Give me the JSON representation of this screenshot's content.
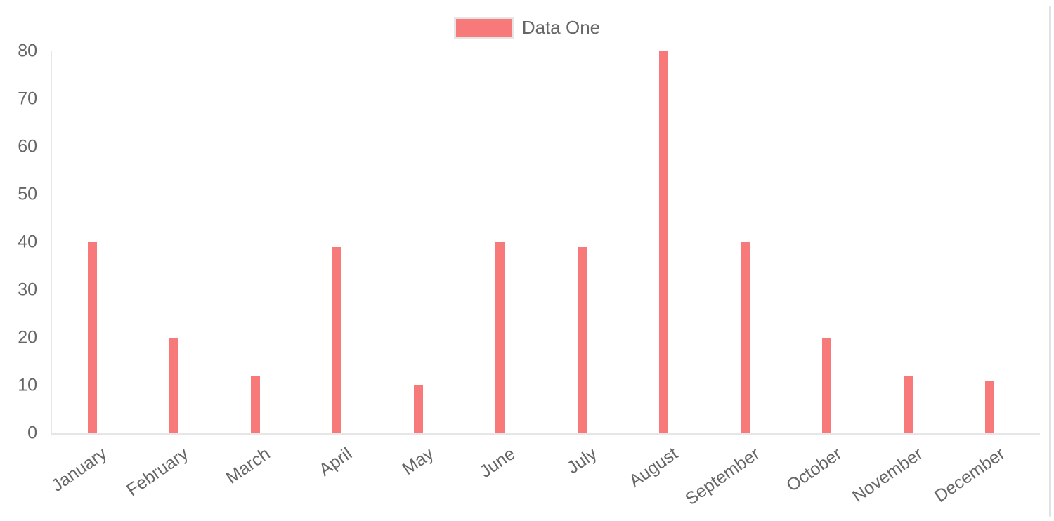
{
  "legend": {
    "label": "Data One",
    "swatch_color": "#f87979"
  },
  "chart_data": {
    "type": "bar",
    "title": "",
    "xlabel": "",
    "ylabel": "",
    "categories": [
      "January",
      "February",
      "March",
      "April",
      "May",
      "June",
      "July",
      "August",
      "September",
      "October",
      "November",
      "December"
    ],
    "series": [
      {
        "name": "Data One",
        "color": "#f87979",
        "values": [
          40,
          20,
          12,
          39,
          10,
          40,
          39,
          80,
          40,
          20,
          12,
          11
        ]
      }
    ],
    "ylim": [
      0,
      80
    ],
    "y_ticks": [
      0,
      10,
      20,
      30,
      40,
      50,
      60,
      70,
      80
    ],
    "grid": false,
    "legend_position": "top-center",
    "axis_color": "#e6e6e6",
    "tick_color": "#666666"
  }
}
